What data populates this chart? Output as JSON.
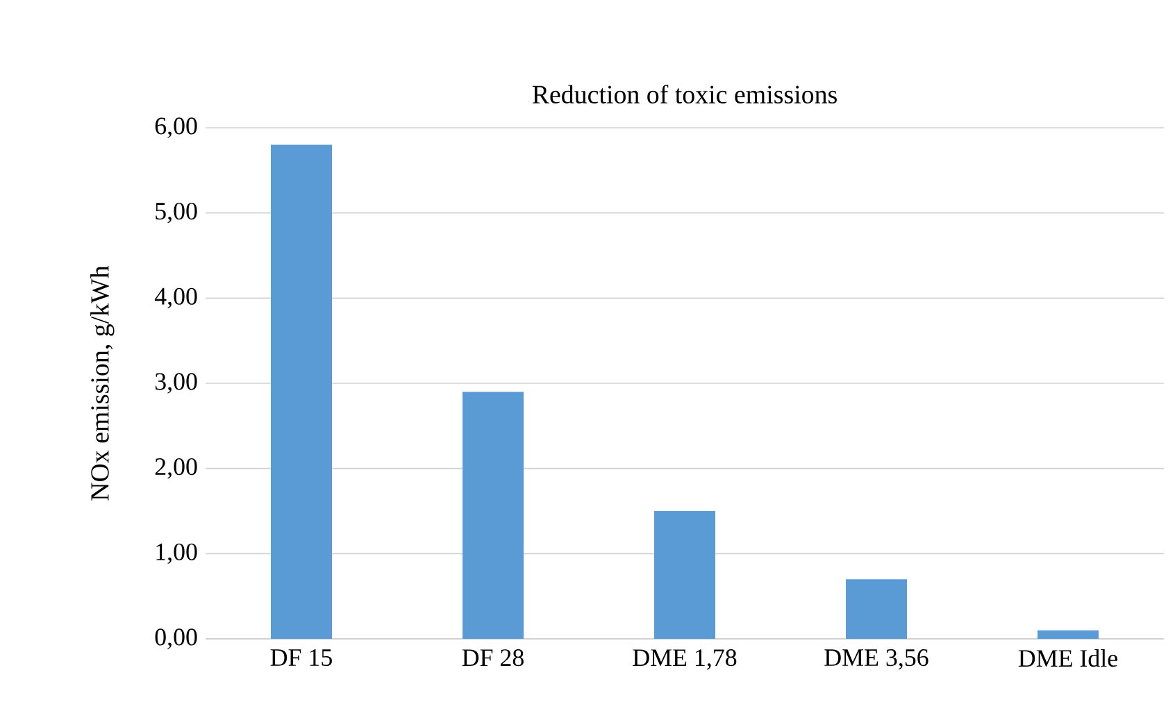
{
  "chart_data": {
    "type": "bar",
    "title": "Reduction of toxic emissions",
    "ylabel": "NOx emission, g/kWh",
    "categories": [
      "DF 15",
      "DF 28",
      "DME 1,78",
      "DME 3,56",
      "DME Idle"
    ],
    "values": [
      5.8,
      2.9,
      1.5,
      0.7,
      0.1
    ],
    "color": "#5b9bd5",
    "ylim": [
      0,
      6
    ],
    "yticks": [
      {
        "value": 0,
        "label": "0,00"
      },
      {
        "value": 1,
        "label": "1,00"
      },
      {
        "value": 2,
        "label": "2,00"
      },
      {
        "value": 3,
        "label": "3,00"
      },
      {
        "value": 4,
        "label": "4,00"
      },
      {
        "value": 5,
        "label": "5,00"
      },
      {
        "value": 6,
        "label": "6,00"
      }
    ],
    "grid": "y"
  }
}
